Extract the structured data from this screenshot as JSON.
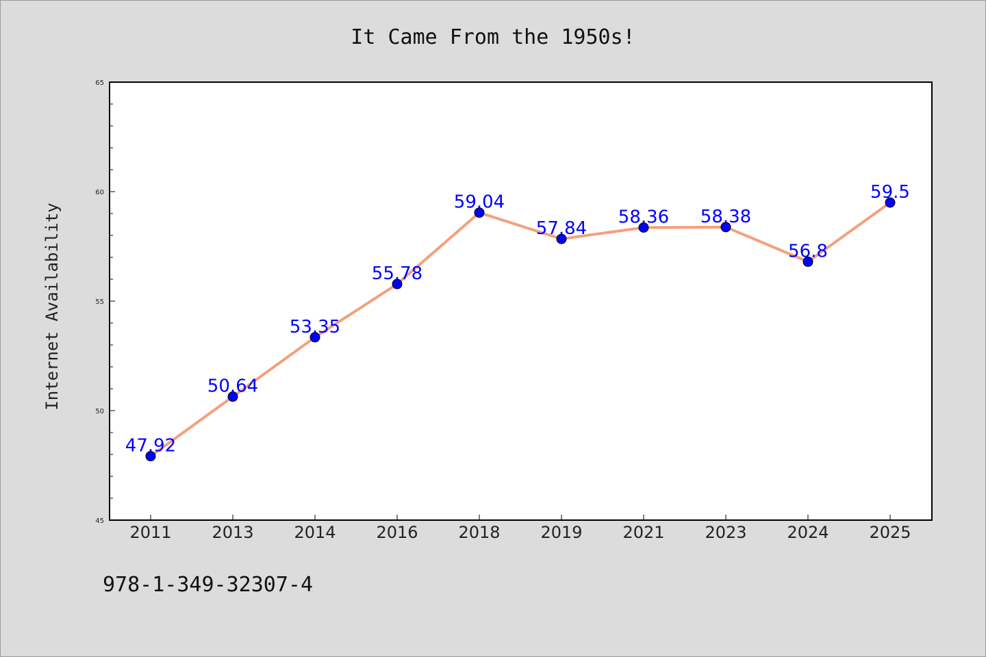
{
  "chart_data": {
    "type": "line",
    "title": "It Came From the 1950s!",
    "ylabel": "Internet Availability",
    "xlabel": "",
    "categories": [
      "2011",
      "2013",
      "2014",
      "2016",
      "2018",
      "2019",
      "2021",
      "2023",
      "2024",
      "2025"
    ],
    "series": [
      {
        "values": [
          47.92,
          50.64,
          53.35,
          55.78,
          59.04,
          57.84,
          58.36,
          58.38,
          56.8,
          59.5
        ],
        "labels": [
          "47.92",
          "50.64",
          "53.35",
          "55.78",
          "59.04",
          "57.84",
          "58.36",
          "58.38",
          "56.8",
          "59.5"
        ],
        "line_color": "#f4a07c",
        "marker_color": "#0000ff"
      }
    ],
    "ylim": [
      45,
      65
    ],
    "yticks": [
      "45",
      "50",
      "55",
      "60",
      "65"
    ],
    "grid": false,
    "legend": "none"
  },
  "footer": {
    "isbn": "978-1-349-32307-4"
  }
}
